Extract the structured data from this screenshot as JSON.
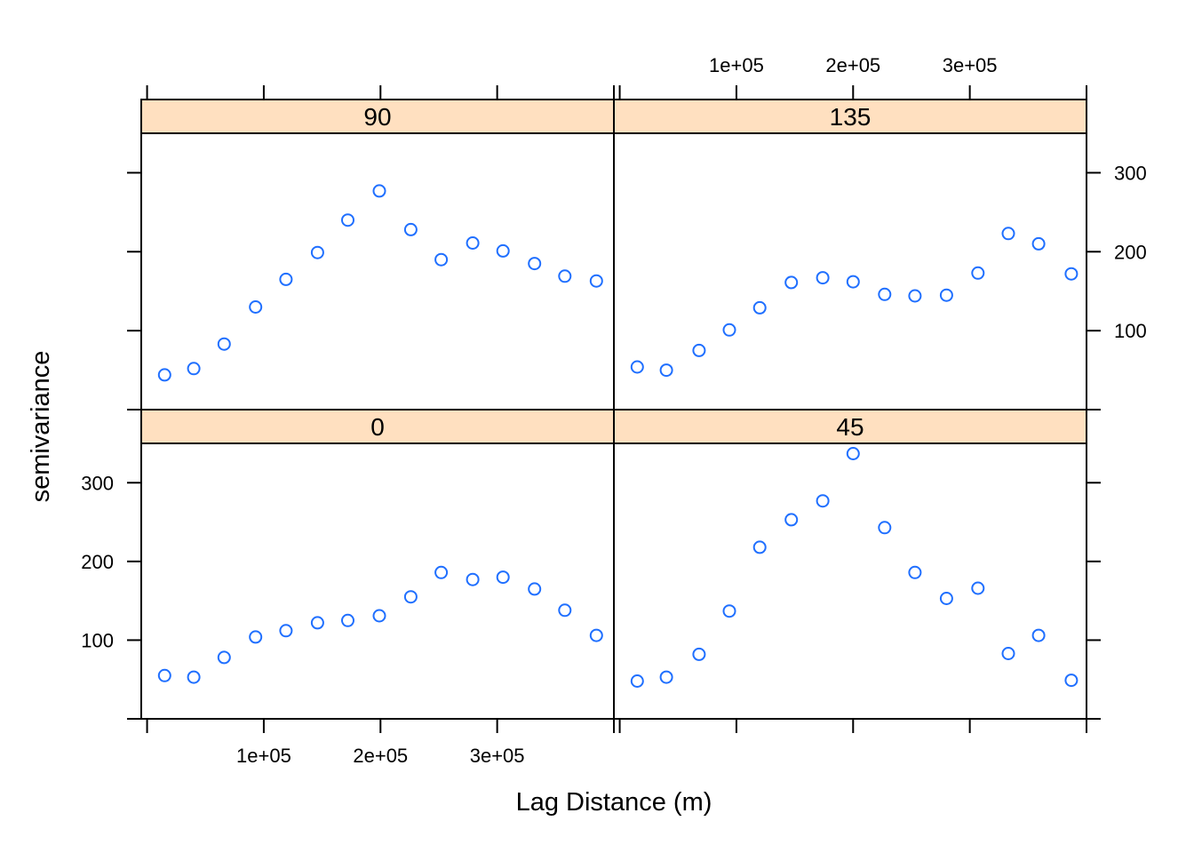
{
  "chart_data": {
    "type": "scatter",
    "layout": "lattice 2x2 (rows: 90,135 on top; 0,45 on bottom)",
    "xlabel": "Lag Distance (m)",
    "ylabel": "semivariance",
    "xlim": [
      -5000,
      400000
    ],
    "ylim": [
      0,
      350
    ],
    "x_ticks": [
      100000,
      200000,
      300000
    ],
    "x_tick_labels": [
      "1e+05",
      "2e+05",
      "3e+05"
    ],
    "y_ticks": [
      100,
      200,
      300
    ],
    "y_tick_labels": [
      "100",
      "200",
      "300"
    ],
    "point_color": "#1f6fff",
    "strip_color": "#ffe0c0",
    "panels": [
      {
        "label": "90",
        "row": 0,
        "col": 0,
        "x": [
          15000,
          40000,
          66000,
          93000,
          119000,
          146000,
          172000,
          199000,
          226000,
          252000,
          279000,
          305000,
          332000,
          358000,
          385000
        ],
        "y": [
          44,
          52,
          83,
          130,
          165,
          199,
          240,
          277,
          228,
          190,
          211,
          201,
          185,
          169,
          163
        ]
      },
      {
        "label": "135",
        "row": 0,
        "col": 1,
        "x": [
          15000,
          40000,
          68000,
          94000,
          120000,
          147000,
          174000,
          200000,
          227000,
          253000,
          280000,
          307000,
          333000,
          359000,
          387000
        ],
        "y": [
          54,
          50,
          75,
          101,
          129,
          161,
          167,
          162,
          146,
          144,
          145,
          173,
          223,
          210,
          172
        ]
      },
      {
        "label": "0",
        "row": 1,
        "col": 0,
        "x": [
          15000,
          40000,
          66000,
          93000,
          119000,
          146000,
          172000,
          199000,
          226000,
          252000,
          279000,
          305000,
          332000,
          358000,
          385000
        ],
        "y": [
          55,
          53,
          78,
          104,
          112,
          122,
          125,
          131,
          155,
          186,
          177,
          180,
          165,
          138,
          106
        ]
      },
      {
        "label": "45",
        "row": 1,
        "col": 1,
        "x": [
          15000,
          40000,
          68000,
          94000,
          120000,
          147000,
          174000,
          200000,
          227000,
          253000,
          280000,
          307000,
          333000,
          359000,
          387000
        ],
        "y": [
          48,
          53,
          82,
          137,
          218,
          253,
          277,
          337,
          243,
          186,
          153,
          166,
          83,
          106,
          49
        ]
      }
    ]
  }
}
